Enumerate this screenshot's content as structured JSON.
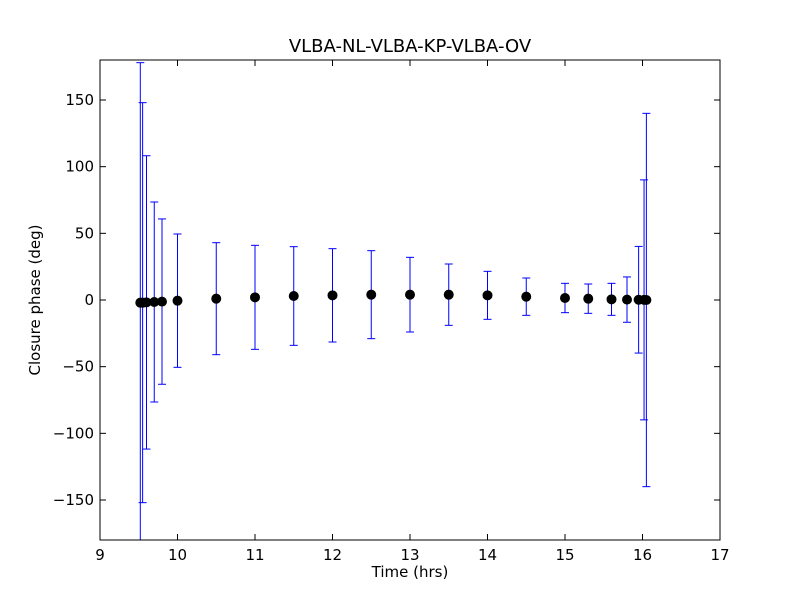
{
  "chart_data": {
    "type": "scatter",
    "title": "VLBA-NL-VLBA-KP-VLBA-OV",
    "xlabel": "Time (hrs)",
    "ylabel": "Closure phase (deg)",
    "xlim": [
      9,
      17
    ],
    "ylim": [
      -180,
      180
    ],
    "xticks": [
      9,
      10,
      11,
      12,
      13,
      14,
      15,
      16,
      17
    ],
    "yticks": [
      -150,
      -100,
      -50,
      0,
      50,
      100,
      150
    ],
    "grid": false,
    "legend": "none",
    "series": [
      {
        "kind": "points with error bars",
        "color": "#000000",
        "error_color": "#0000ff",
        "x": [
          9.52,
          9.55,
          9.6,
          9.7,
          9.8,
          10.0,
          10.5,
          11.0,
          11.5,
          12.0,
          12.5,
          13.0,
          13.5,
          14.0,
          14.5,
          15.0,
          15.3,
          15.6,
          15.8,
          15.95,
          16.02,
          16.05
        ],
        "y": [
          -2,
          -2,
          -1.8,
          -1.5,
          -1.2,
          -0.5,
          1,
          2,
          3,
          3.5,
          4,
          4,
          4,
          3.5,
          2.5,
          1.5,
          1,
          0.5,
          0.3,
          0.2,
          0.1,
          0
        ],
        "err": [
          180,
          150,
          110,
          75,
          62,
          50,
          42,
          39,
          37,
          35,
          33,
          28,
          23,
          18,
          14,
          11,
          11,
          12,
          17,
          40,
          90,
          140
        ]
      }
    ]
  },
  "colors": {
    "errorbar": "#0000ff",
    "marker": "#000000",
    "background": "#ffffff"
  }
}
